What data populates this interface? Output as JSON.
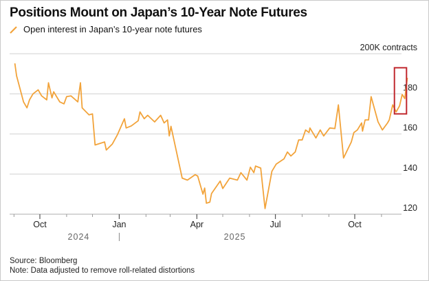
{
  "title": "Positions Mount on Japan’s 10-Year Note Futures",
  "colors": {
    "series": "#f2a33a",
    "grid": "#d9d9d9",
    "highlight_box": "#c0272d"
  },
  "chart_data": {
    "type": "line",
    "title": "Positions Mount on Japan’s 10-Year Note Futures",
    "legend_position": "top-left",
    "grid": true,
    "ylabel": "200K contracts",
    "ylim": [
      120,
      200
    ],
    "y_ticks": [
      {
        "value": 120,
        "label": "120"
      },
      {
        "value": 140,
        "label": "140"
      },
      {
        "value": 160,
        "label": "160"
      },
      {
        "value": 180,
        "label": "180"
      },
      {
        "value": 200,
        "label": "200K contracts"
      }
    ],
    "x_ticks": [
      {
        "date": "2024-10-01",
        "label": "Oct"
      },
      {
        "date": "2025-01-01",
        "label": "Jan"
      },
      {
        "date": "2025-04-01",
        "label": "Apr"
      },
      {
        "date": "2025-07-01",
        "label": "Jul"
      },
      {
        "date": "2025-10-01",
        "label": "Oct"
      }
    ],
    "year_labels": [
      {
        "date": "2024-11-15",
        "label": "2024"
      },
      {
        "date": "2025-05-15",
        "label": "2025"
      }
    ],
    "series": [
      {
        "name": "Open interest in Japan’s 10-year note futures",
        "points": [
          [
            "2024-09-02",
            195.2
          ],
          [
            "2024-09-04",
            189
          ],
          [
            "2024-09-12",
            176
          ],
          [
            "2024-09-16",
            173
          ],
          [
            "2024-09-19",
            177
          ],
          [
            "2024-09-23",
            180
          ],
          [
            "2024-09-29",
            182
          ],
          [
            "2024-10-03",
            179
          ],
          [
            "2024-10-09",
            177
          ],
          [
            "2024-10-11",
            185.5
          ],
          [
            "2024-10-15",
            178
          ],
          [
            "2024-10-17",
            181
          ],
          [
            "2024-10-24",
            176
          ],
          [
            "2024-10-29",
            175
          ],
          [
            "2024-11-01",
            178.6
          ],
          [
            "2024-11-06",
            179
          ],
          [
            "2024-11-14",
            176
          ],
          [
            "2024-11-17",
            185.5
          ],
          [
            "2024-11-19",
            173
          ],
          [
            "2024-11-27",
            169.5
          ],
          [
            "2024-12-01",
            170
          ],
          [
            "2024-12-04",
            154.5
          ],
          [
            "2024-12-15",
            156
          ],
          [
            "2024-12-17",
            152
          ],
          [
            "2024-12-24",
            155
          ],
          [
            "2024-12-30",
            159.7
          ],
          [
            "2025-01-07",
            167.6
          ],
          [
            "2025-01-09",
            163
          ],
          [
            "2025-01-15",
            164
          ],
          [
            "2025-01-23",
            166.6
          ],
          [
            "2025-01-25",
            171
          ],
          [
            "2025-01-30",
            167.6
          ],
          [
            "2025-02-03",
            169.3
          ],
          [
            "2025-02-11",
            166
          ],
          [
            "2025-02-18",
            169.3
          ],
          [
            "2025-02-22",
            165.5
          ],
          [
            "2025-02-26",
            167
          ],
          [
            "2025-02-28",
            159
          ],
          [
            "2025-03-02",
            163.8
          ],
          [
            "2025-03-15",
            138
          ],
          [
            "2025-03-21",
            137
          ],
          [
            "2025-03-30",
            139.7
          ],
          [
            "2025-04-02",
            139
          ],
          [
            "2025-04-08",
            130
          ],
          [
            "2025-04-10",
            133
          ],
          [
            "2025-04-12",
            125.5
          ],
          [
            "2025-04-16",
            126
          ],
          [
            "2025-04-18",
            130.3
          ],
          [
            "2025-04-28",
            136.5
          ],
          [
            "2025-05-01",
            132.8
          ],
          [
            "2025-05-09",
            138
          ],
          [
            "2025-05-18",
            137
          ],
          [
            "2025-05-22",
            140.7
          ],
          [
            "2025-05-29",
            137
          ],
          [
            "2025-06-02",
            143.4
          ],
          [
            "2025-06-06",
            140.7
          ],
          [
            "2025-06-08",
            144
          ],
          [
            "2025-06-14",
            143
          ],
          [
            "2025-06-19",
            122.8
          ],
          [
            "2025-06-27",
            141.4
          ],
          [
            "2025-07-02",
            145
          ],
          [
            "2025-07-11",
            147.6
          ],
          [
            "2025-07-15",
            151
          ],
          [
            "2025-07-19",
            149
          ],
          [
            "2025-07-24",
            151
          ],
          [
            "2025-07-28",
            157
          ],
          [
            "2025-08-01",
            157
          ],
          [
            "2025-08-05",
            162
          ],
          [
            "2025-08-09",
            160.7
          ],
          [
            "2025-08-10",
            163
          ],
          [
            "2025-08-17",
            158
          ],
          [
            "2025-08-22",
            162
          ],
          [
            "2025-08-26",
            159
          ],
          [
            "2025-09-02",
            163
          ],
          [
            "2025-09-08",
            162.7
          ],
          [
            "2025-09-12",
            174.5
          ],
          [
            "2025-09-18",
            148
          ],
          [
            "2025-09-27",
            156
          ],
          [
            "2025-09-30",
            160.7
          ],
          [
            "2025-10-04",
            162
          ],
          [
            "2025-10-09",
            165.5
          ],
          [
            "2025-10-10",
            161.4
          ],
          [
            "2025-10-13",
            167
          ],
          [
            "2025-10-17",
            167
          ],
          [
            "2025-10-20",
            178.6
          ],
          [
            "2025-10-28",
            166
          ],
          [
            "2025-11-02",
            162
          ],
          [
            "2025-11-08",
            165.5
          ],
          [
            "2025-11-10",
            167
          ],
          [
            "2025-11-14",
            174.5
          ],
          [
            "2025-11-18",
            171
          ],
          [
            "2025-11-22",
            174
          ],
          [
            "2025-11-25",
            179.7
          ],
          [
            "2025-11-28",
            177.6
          ],
          [
            "2025-12-01",
            188
          ]
        ]
      }
    ],
    "annotations": [
      {
        "type": "highlight-box",
        "x_range": [
          "2025-11-16",
          "2025-11-30"
        ],
        "y_range": [
          170,
          193
        ]
      }
    ]
  },
  "footer": {
    "source": "Source: Bloomberg",
    "note": "Note: Data adjusted to remove roll-related distortions"
  }
}
